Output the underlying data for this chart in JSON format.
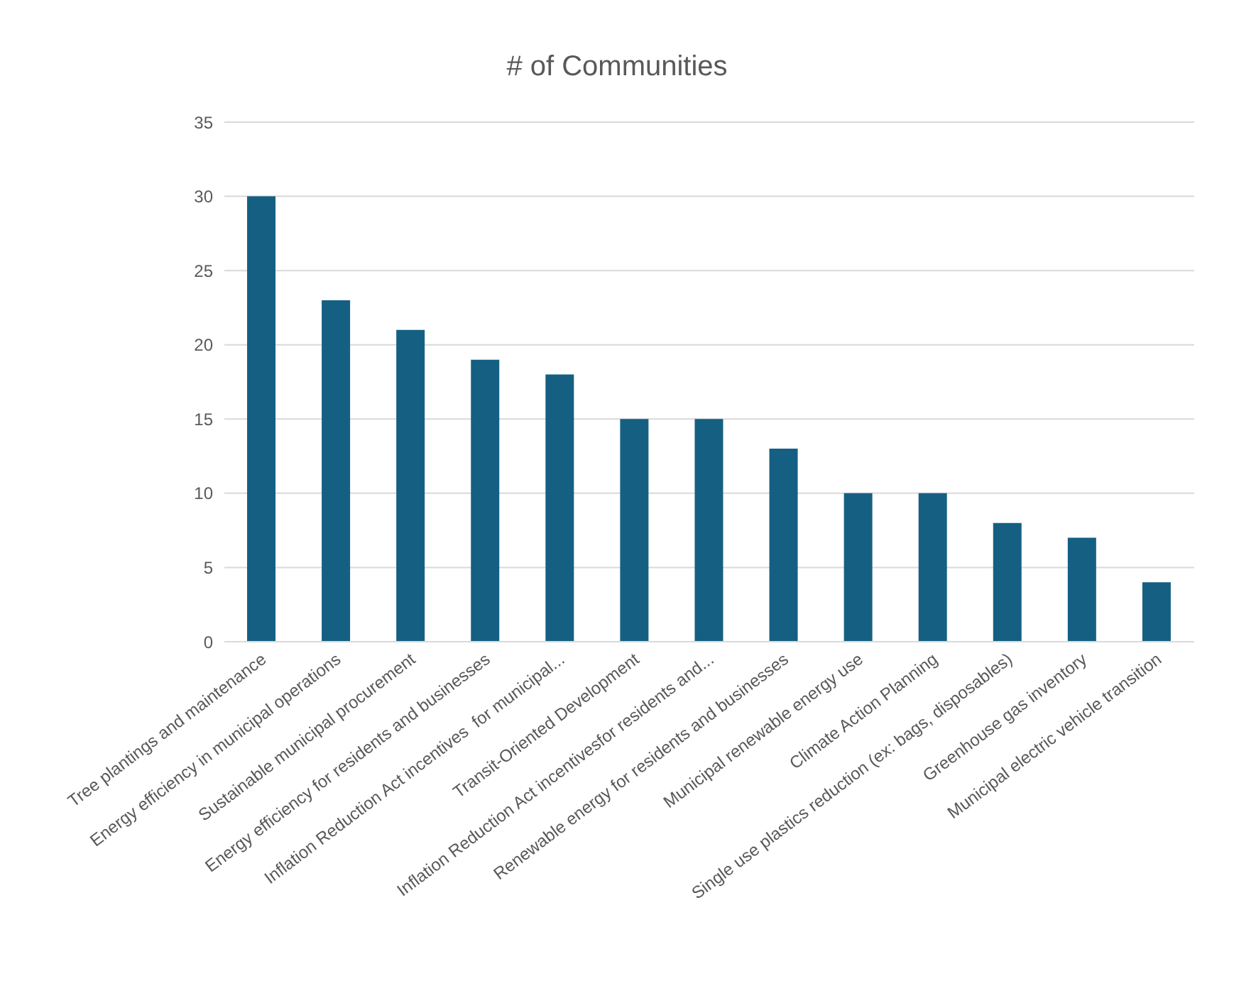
{
  "chart_data": {
    "type": "bar",
    "title": "# of Communities",
    "categories": [
      "Tree plantings and maintenance",
      "Energy efficiency in municipal operations",
      "Sustainable municipal procurement",
      "Energy efficiency for residents and businesses",
      "Inflation Reduction Act incentives  for municipal...",
      "Transit-Oriented Development",
      "Inflation Reduction Act incentivesfor residents and...",
      "Renewable energy for residents and businesses",
      "Municipal renewable energy use",
      "Climate Action Planning",
      "Single use plastics reduction (ex: bags, disposables)",
      "Greenhouse gas inventory",
      "Municipal electric vehicle transition"
    ],
    "values": [
      30,
      23,
      21,
      19,
      18,
      15,
      15,
      13,
      10,
      10,
      8,
      7,
      4
    ],
    "color": "#156082",
    "ylim": [
      0,
      35
    ],
    "yticks": [
      0,
      5,
      10,
      15,
      20,
      25,
      30,
      35
    ],
    "grid": "y"
  }
}
